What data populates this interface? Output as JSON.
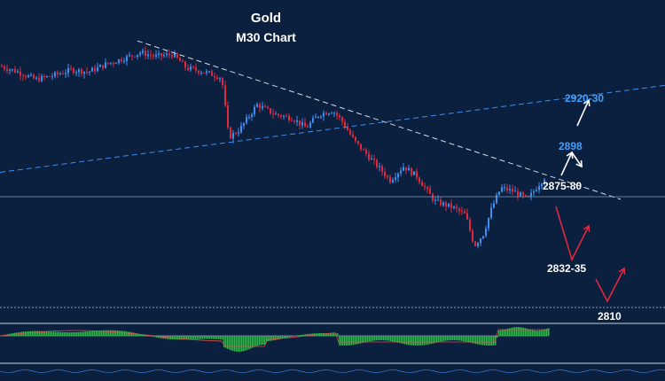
{
  "chart_data": {
    "type": "candlestick",
    "title": "Gold",
    "subtitle": "M30 Chart",
    "colors": {
      "background": "#0b1f3e",
      "bull": "#3f8ff0",
      "bear": "#e0283c",
      "level_highlight": "#3fa0ff",
      "level_text": "#ffffff",
      "arrow_up": "#ffffff",
      "arrow_down": "#e0283c",
      "histogram": "#3cb05a"
    },
    "price_range": [
      2795,
      2950
    ],
    "levels": [
      {
        "label": "2920-30",
        "value": 2925,
        "color": "#3fa0ff"
      },
      {
        "label": "2898",
        "value": 2898,
        "color": "#3fa0ff"
      },
      {
        "label": "2875-80",
        "value": 2878,
        "color": "#ffffff"
      },
      {
        "label": "2832-35",
        "value": 2833,
        "color": "#ffffff"
      },
      {
        "label": "2810",
        "value": 2810,
        "color": "#ffffff"
      }
    ],
    "close_path": [
      [
        0,
        2925
      ],
      [
        20,
        2922
      ],
      [
        40,
        2918
      ],
      [
        60,
        2920
      ],
      [
        80,
        2923
      ],
      [
        100,
        2922
      ],
      [
        120,
        2926
      ],
      [
        140,
        2929
      ],
      [
        158,
        2932
      ],
      [
        175,
        2930
      ],
      [
        195,
        2931
      ],
      [
        210,
        2924
      ],
      [
        230,
        2922
      ],
      [
        250,
        2919
      ],
      [
        258,
        2888
      ],
      [
        270,
        2892
      ],
      [
        290,
        2905
      ],
      [
        310,
        2900
      ],
      [
        330,
        2898
      ],
      [
        345,
        2893
      ],
      [
        360,
        2900
      ],
      [
        375,
        2902
      ],
      [
        385,
        2897
      ],
      [
        400,
        2886
      ],
      [
        420,
        2876
      ],
      [
        440,
        2866
      ],
      [
        455,
        2873
      ],
      [
        470,
        2868
      ],
      [
        490,
        2855
      ],
      [
        510,
        2852
      ],
      [
        525,
        2848
      ],
      [
        535,
        2832
      ],
      [
        545,
        2838
      ],
      [
        555,
        2852
      ],
      [
        565,
        2862
      ],
      [
        580,
        2860
      ],
      [
        595,
        2856
      ],
      [
        605,
        2862
      ],
      [
        615,
        2868
      ]
    ],
    "trendlines": [
      {
        "kind": "dashed-white",
        "from": [
          155,
          2938
        ],
        "to": [
          700,
          2856
        ]
      },
      {
        "kind": "dashed-blue",
        "from": [
          0,
          2870
        ],
        "to": [
          750,
          2915
        ]
      }
    ]
  }
}
